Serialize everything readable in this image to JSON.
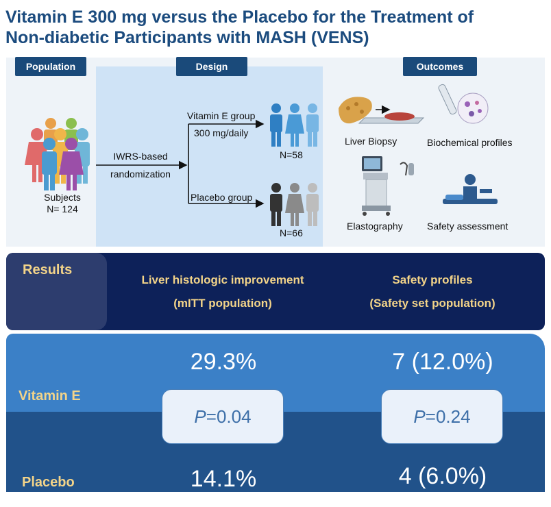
{
  "title": {
    "line1": "Vitamin E 300 mg versus the Placebo for the Treatment of",
    "line2": "Non-diabetic Participants with MASH (VENS)"
  },
  "sections": {
    "population": "Population",
    "design": "Design",
    "outcomes": "Outcomes"
  },
  "population": {
    "subjects_label": "Subjects",
    "subjects_n": "N= 124"
  },
  "design": {
    "randomization_line1": "IWRS-based",
    "randomization_line2": "randomization",
    "vitamin_group": "Vitamin E group",
    "vitamin_dose": "300 mg/daily",
    "vitamin_n": "N=58",
    "placebo_group": "Placebo group",
    "placebo_n": "N=66"
  },
  "outcomes": {
    "liver_biopsy": "Liver Biopsy",
    "biochemical": "Biochemical profiles",
    "elastography": "Elastography",
    "safety": "Safety assessment"
  },
  "results": {
    "label": "Results",
    "col1_line1": "Liver histologic improvement",
    "col1_line2": "(mITT population)",
    "col2_line1": "Safety profiles",
    "col2_line2": "(Safety set population)",
    "vitamin_label": "Vitamin E",
    "placebo_label": "Placebo",
    "vitamin_histo": "29.3%",
    "placebo_histo": "14.1%",
    "vitamin_safety": "7 (12.0%)",
    "placebo_safety": "4 (6.0%)",
    "p_letter": "P",
    "p_histo": "=0.04",
    "p_safety": "=0.24"
  },
  "colors": {
    "title": "#1b4b7e",
    "header_badge": "#1a4a7a",
    "results_bg": "#0d2159",
    "vitamin_row": "#3b80c7",
    "placebo_row": "#21528a",
    "accent_text": "#f3d489"
  }
}
